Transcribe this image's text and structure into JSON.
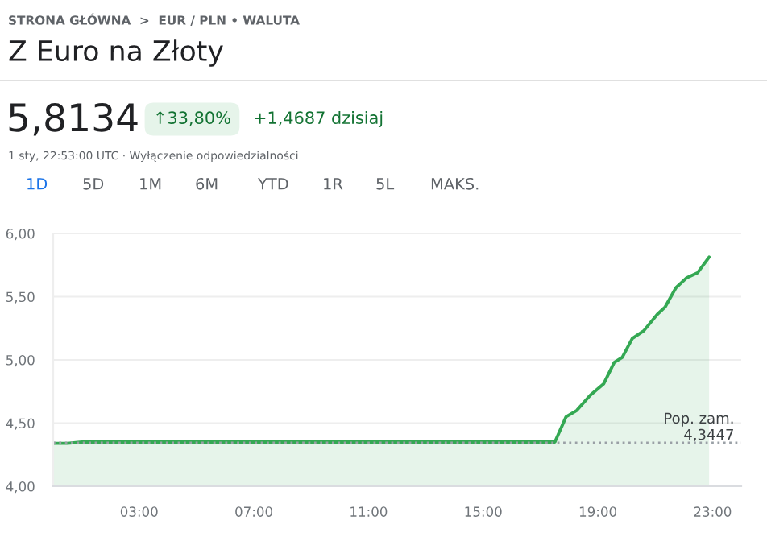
{
  "chart_data": {
    "type": "area",
    "title": "Z Euro na Złoty",
    "annotations": [
      "STRONA GŁÓWNA  >  EUR / PLN • WALUTA",
      "5,8134",
      "↑33,80%",
      "+1,4687 dzisiaj",
      "1 sty, 22:53:00 UTC · Wyłączenie odpowiedzialności",
      "1D",
      "5D",
      "1M",
      "6M",
      "YTD",
      "1R",
      "5L",
      "MAKS."
    ],
    "x": [
      0,
      0.5,
      1,
      3,
      7,
      11,
      15,
      17.5,
      17.89,
      18.26,
      18.73,
      19.2,
      19.57,
      19.85,
      20.2,
      20.6,
      21.07,
      21.35,
      21.72,
      22.1,
      22.48,
      22.88
    ],
    "series": [
      {
        "color": "#34a853",
        "values": [
          4.34,
          4.34,
          4.35,
          4.35,
          4.35,
          4.35,
          4.35,
          4.35,
          4.55,
          4.6,
          4.72,
          4.81,
          4.98,
          5.02,
          5.17,
          5.23,
          5.36,
          5.42,
          5.57,
          5.65,
          5.69,
          5.8134
        ]
      }
    ],
    "ref_lines": [
      {
        "axis": "y",
        "value": 4.3447,
        "label": "Pop. zam.\n4,3447",
        "color": "#9aa0a6",
        "line_style": "dotted"
      }
    ],
    "xlim": [
      0,
      24
    ],
    "xticks": [
      {
        "value": 3,
        "label": "03:00"
      },
      {
        "value": 7,
        "label": "07:00"
      },
      {
        "value": 11,
        "label": "11:00"
      },
      {
        "value": 15,
        "label": "15:00"
      },
      {
        "value": 19,
        "label": "19:00"
      },
      {
        "value": 23,
        "label": "23:00"
      }
    ],
    "ylim": [
      4,
      6
    ],
    "yticks": [
      {
        "value": 4,
        "label": "4,00"
      },
      {
        "value": 4.5,
        "label": "4,50"
      },
      {
        "value": 5,
        "label": "5,00"
      },
      {
        "value": 5.5,
        "label": "5,50"
      },
      {
        "value": 6,
        "label": "6,00"
      }
    ],
    "grid": "y",
    "legend": false,
    "marker": "none",
    "line_style": "solid"
  }
}
